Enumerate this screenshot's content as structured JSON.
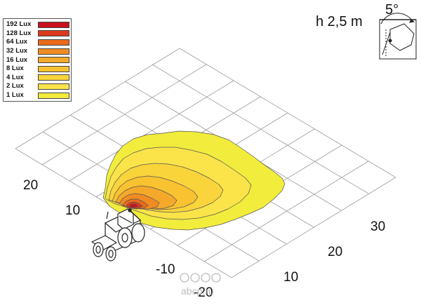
{
  "legend": {
    "items": [
      {
        "label": "192 Lux",
        "color": "#c8121e"
      },
      {
        "label": "128 Lux",
        "color": "#dc3a1c"
      },
      {
        "label": "64 Lux",
        "color": "#ea6a1c"
      },
      {
        "label": "32 Lux",
        "color": "#f08c22"
      },
      {
        "label": "16 Lux",
        "color": "#f5a92a"
      },
      {
        "label": "8 Lux",
        "color": "#f8c230"
      },
      {
        "label": "4 Lux",
        "color": "#f9d43a"
      },
      {
        "label": "2 Lux",
        "color": "#fae44a"
      },
      {
        "label": "1 Lux",
        "color": "#f2ec3c"
      }
    ]
  },
  "mounting": {
    "height_label": "h 2,5 m",
    "tilt_label": "5°",
    "icon": "lamp-tilt-icon"
  },
  "grid": {
    "y_ticks": [
      "20",
      "10",
      "-10",
      "-20"
    ],
    "x_ticks": [
      "10",
      "20",
      "30"
    ]
  },
  "vehicle": {
    "icon": "tractor-icon"
  },
  "watermark": {
    "text": "abcp.ru",
    "icon": "logo-icon"
  }
}
